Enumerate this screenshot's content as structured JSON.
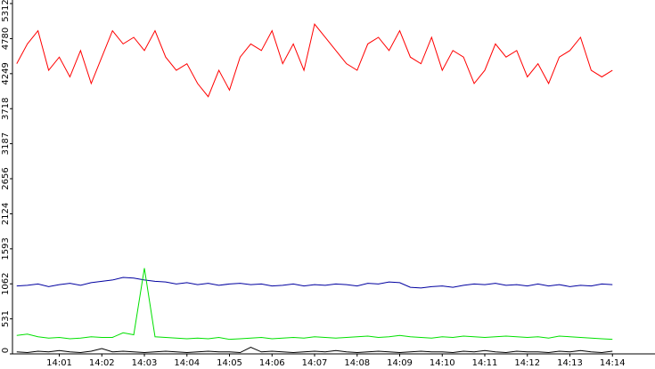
{
  "chart_data": {
    "type": "line",
    "x": [
      0,
      0.25,
      0.5,
      0.75,
      1,
      1.25,
      1.5,
      1.75,
      2,
      2.25,
      2.5,
      2.75,
      3,
      3.25,
      3.5,
      3.75,
      4,
      4.25,
      4.5,
      4.75,
      5,
      5.25,
      5.5,
      5.75,
      6,
      6.25,
      6.5,
      6.75,
      7,
      7.25,
      7.5,
      7.75,
      8,
      8.25,
      8.5,
      8.75,
      9,
      9.25,
      9.5,
      9.75,
      10,
      10.25,
      10.5,
      10.75,
      11,
      11.25,
      11.5,
      11.75,
      12,
      12.25,
      12.5,
      12.75,
      13,
      13.25,
      13.5,
      13.75,
      14
    ],
    "series": [
      {
        "color": "#ff0000",
        "values": [
          4400,
          4700,
          4900,
          4300,
          4500,
          4200,
          4600,
          4100,
          4500,
          4900,
          4700,
          4800,
          4600,
          4900,
          4500,
          4300,
          4400,
          4100,
          3900,
          4300,
          4000,
          4500,
          4700,
          4600,
          4900,
          4400,
          4700,
          4300,
          5000,
          4800,
          4600,
          4400,
          4300,
          4700,
          4800,
          4600,
          4900,
          4500,
          4400,
          4800,
          4300,
          4600,
          4500,
          4100,
          4300,
          4700,
          4500,
          4600,
          4200,
          4400,
          4100,
          4500,
          4600,
          4800,
          4300,
          4200,
          4300
        ]
      },
      {
        "color": "#0000a0",
        "values": [
          1030,
          1040,
          1060,
          1020,
          1050,
          1070,
          1040,
          1080,
          1100,
          1120,
          1160,
          1150,
          1120,
          1100,
          1090,
          1060,
          1080,
          1050,
          1070,
          1040,
          1060,
          1070,
          1050,
          1060,
          1030,
          1040,
          1060,
          1030,
          1050,
          1040,
          1060,
          1050,
          1030,
          1070,
          1060,
          1090,
          1080,
          1010,
          1000,
          1020,
          1030,
          1010,
          1040,
          1060,
          1050,
          1070,
          1040,
          1050,
          1030,
          1060,
          1030,
          1050,
          1020,
          1040,
          1030,
          1060,
          1050
        ]
      },
      {
        "color": "#00e000",
        "values": [
          280,
          300,
          260,
          240,
          250,
          230,
          240,
          260,
          250,
          250,
          320,
          290,
          1300,
          260,
          250,
          240,
          230,
          240,
          230,
          250,
          220,
          230,
          240,
          250,
          230,
          240,
          250,
          240,
          260,
          250,
          240,
          250,
          260,
          270,
          250,
          260,
          280,
          260,
          250,
          240,
          260,
          250,
          270,
          260,
          250,
          260,
          270,
          260,
          250,
          260,
          240,
          270,
          260,
          250,
          240,
          230,
          220
        ]
      },
      {
        "color": "#000000",
        "values": [
          30,
          20,
          40,
          30,
          50,
          30,
          20,
          40,
          80,
          30,
          40,
          30,
          20,
          30,
          40,
          30,
          20,
          30,
          40,
          30,
          30,
          20,
          100,
          30,
          40,
          30,
          20,
          30,
          40,
          30,
          50,
          30,
          20,
          30,
          40,
          30,
          20,
          30,
          40,
          30,
          30,
          20,
          40,
          30,
          50,
          30,
          20,
          40,
          30,
          30,
          20,
          40,
          30,
          50,
          30,
          20,
          40
        ]
      }
    ],
    "xlim": [
      -0.1,
      15
    ],
    "xticks": [
      {
        "value": 1,
        "label": "14:01"
      },
      {
        "value": 2,
        "label": "14:02"
      },
      {
        "value": 3,
        "label": "14:03"
      },
      {
        "value": 4,
        "label": "14:04"
      },
      {
        "value": 5,
        "label": "14:05"
      },
      {
        "value": 6,
        "label": "14:06"
      },
      {
        "value": 7,
        "label": "14:07"
      },
      {
        "value": 8,
        "label": "14:08"
      },
      {
        "value": 9,
        "label": "14:09"
      },
      {
        "value": 10,
        "label": "14:10"
      },
      {
        "value": 11,
        "label": "14:11"
      },
      {
        "value": 12,
        "label": "14:12"
      },
      {
        "value": 13,
        "label": "14:13"
      },
      {
        "value": 14,
        "label": "14:14"
      }
    ],
    "ylim": [
      0,
      5312
    ],
    "yticks": [
      0,
      531,
      1062,
      1593,
      2124,
      2656,
      3187,
      3718,
      4249,
      4780,
      5312
    ]
  }
}
